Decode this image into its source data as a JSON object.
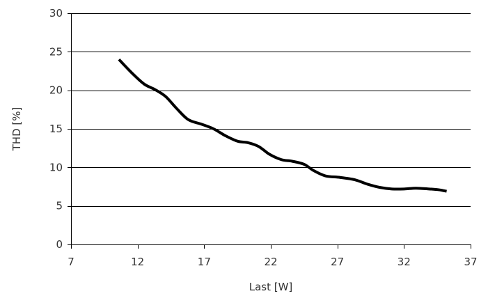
{
  "chart_data": {
    "type": "line",
    "xlabel": "Last [W]",
    "ylabel": "THD [%]",
    "xlim": [
      7,
      37
    ],
    "ylim": [
      0,
      30
    ],
    "x_ticks": [
      7,
      12,
      17,
      22,
      27,
      32,
      37
    ],
    "y_ticks": [
      0,
      5,
      10,
      15,
      20,
      25,
      30
    ],
    "grid": "horizontal",
    "legend": "none",
    "series": [
      {
        "color": "#000000",
        "x": [
          10.6,
          11.6,
          12.5,
          13.3,
          14.1,
          14.9,
          15.8,
          16.8,
          17.7,
          18.6,
          19.5,
          20.3,
          21.1,
          21.9,
          22.8,
          23.6,
          24.5,
          25.2,
          26.1,
          27.2,
          28.3,
          29.3,
          30.2,
          31.1,
          32.0,
          32.9,
          33.9,
          34.6,
          35.2
        ],
        "y": [
          24.0,
          22.2,
          20.8,
          20.1,
          19.2,
          17.7,
          16.2,
          15.6,
          15.0,
          14.1,
          13.4,
          13.2,
          12.7,
          11.7,
          11.0,
          10.8,
          10.4,
          9.6,
          8.9,
          8.7,
          8.4,
          7.8,
          7.4,
          7.2,
          7.2,
          7.3,
          7.2,
          7.1,
          6.9
        ]
      }
    ]
  }
}
